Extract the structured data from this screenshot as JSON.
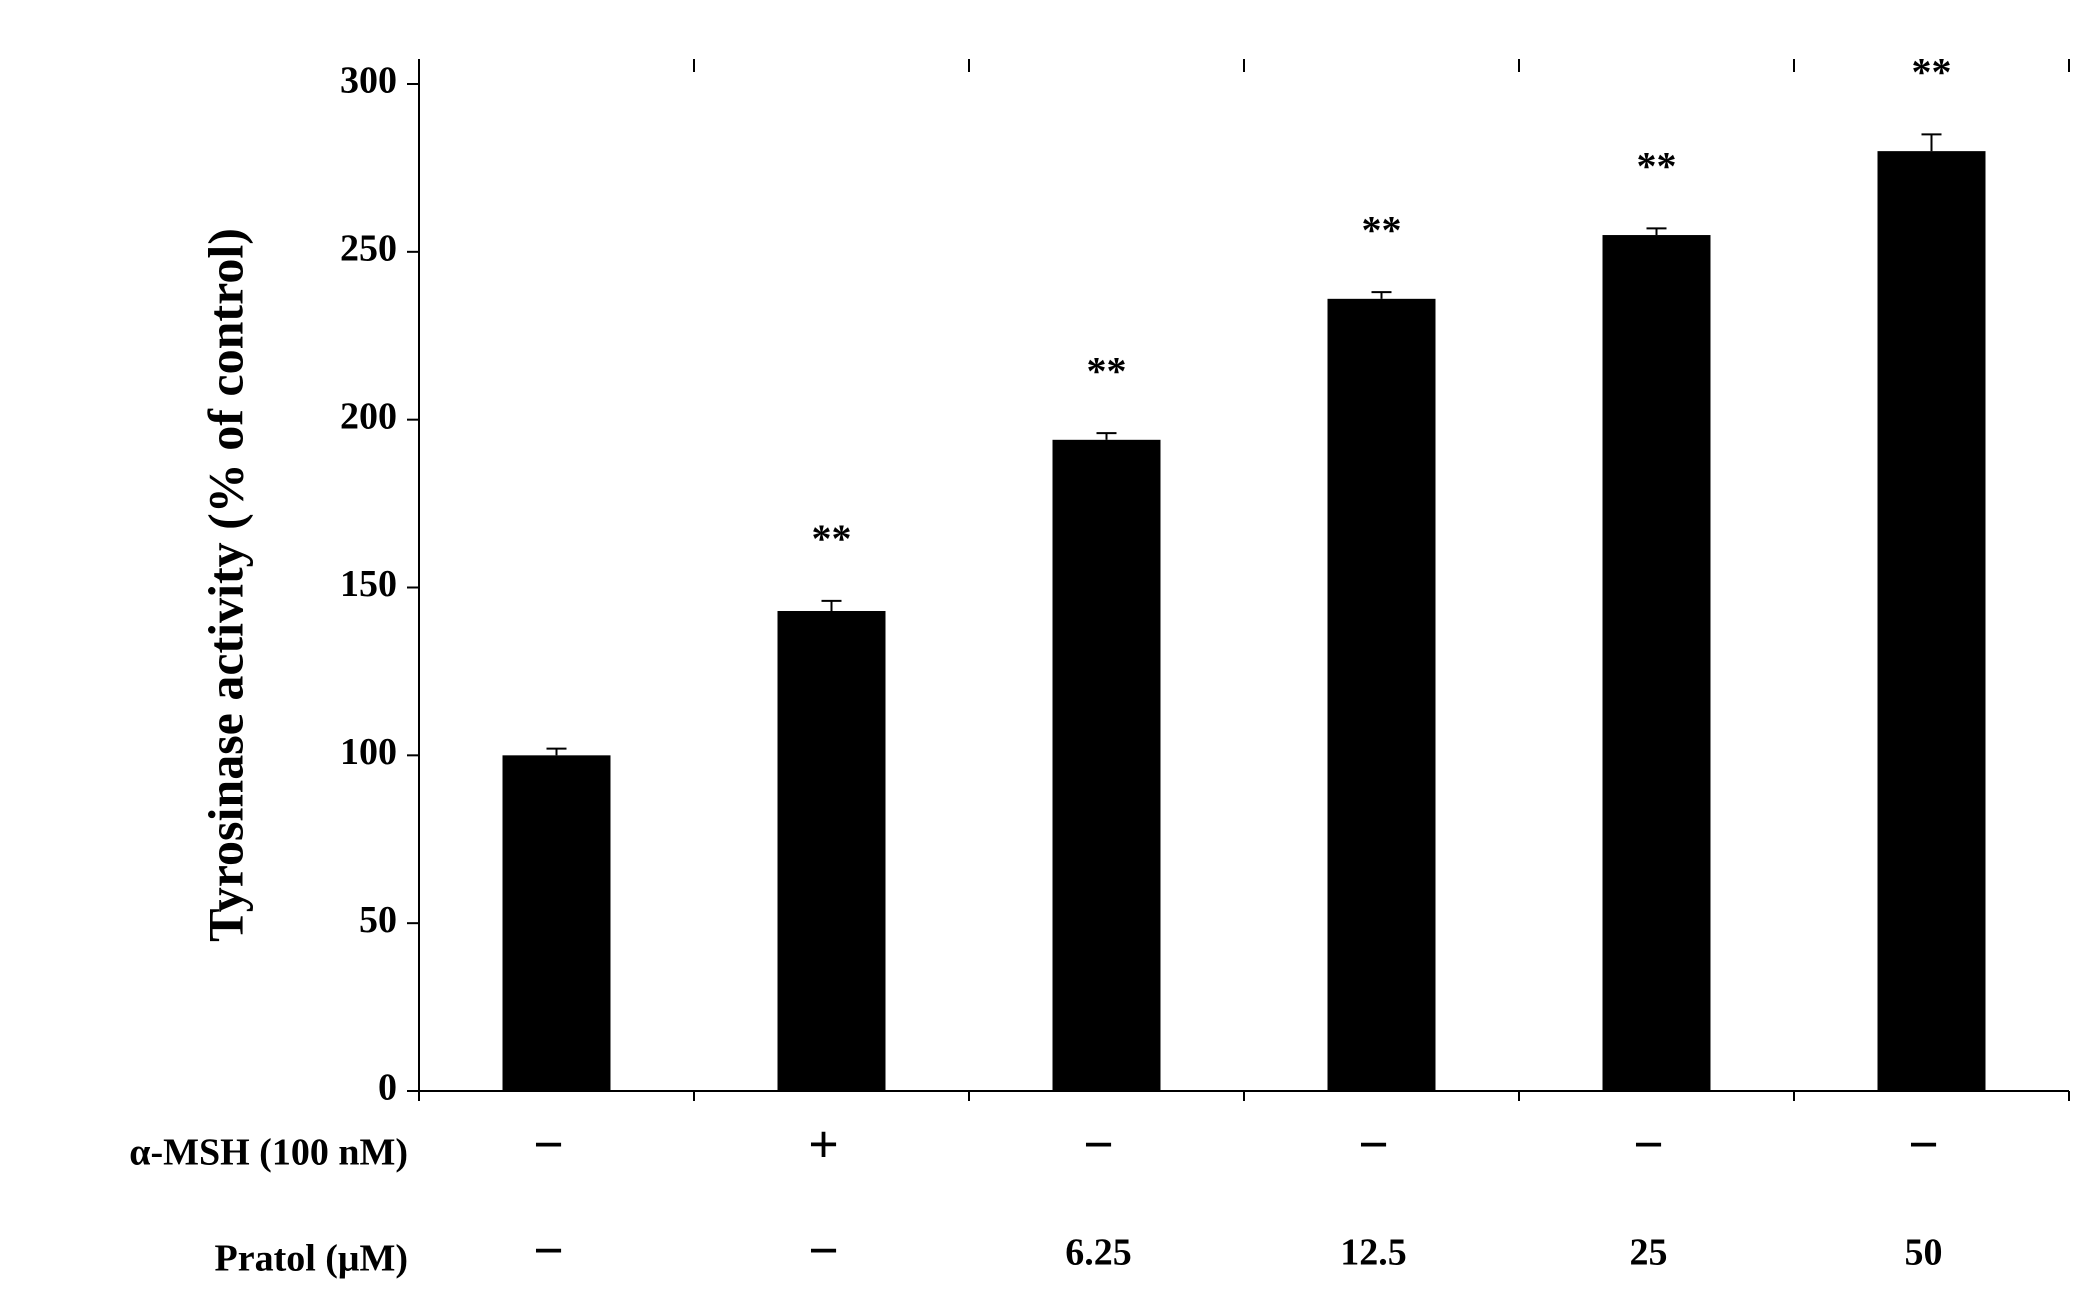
{
  "chart_data": {
    "type": "bar",
    "ylabel": "Tyrosinase activity (% of control)",
    "values": [
      100,
      143,
      194,
      236,
      255,
      280
    ],
    "errors": [
      2,
      3,
      2,
      2,
      2,
      5
    ],
    "annotations": [
      null,
      "**",
      "**",
      "**",
      "**",
      "**"
    ],
    "color": "#000000",
    "ylim": [
      0,
      300
    ],
    "yticks": [
      0,
      50,
      100,
      150,
      200,
      250,
      300
    ],
    "rows": [
      {
        "label": "α-MSH (100  nM)",
        "values": [
          "−",
          "+",
          "−",
          "−",
          "−",
          "−"
        ]
      },
      {
        "label": "Pratol (μM)",
        "values": [
          "−",
          "−",
          "6.25",
          "12.5",
          "25",
          "50"
        ]
      }
    ]
  }
}
